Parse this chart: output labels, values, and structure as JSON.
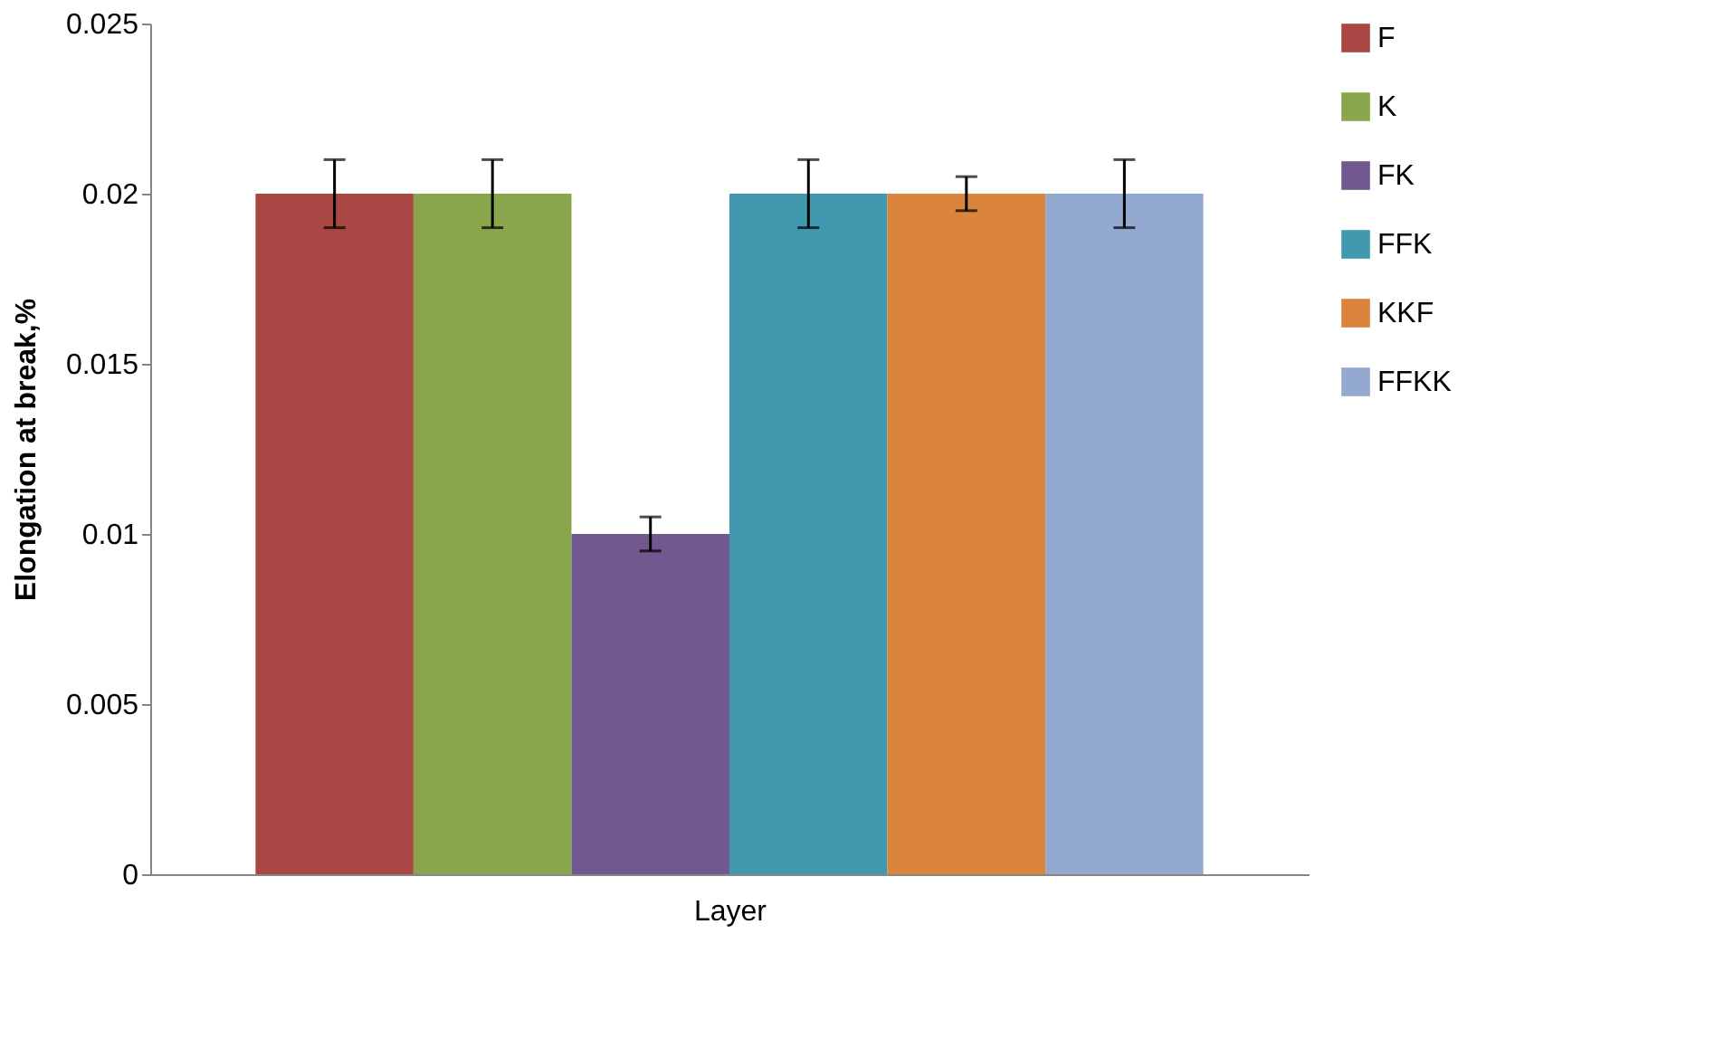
{
  "chart_data": {
    "type": "bar",
    "xlabel": "Layer",
    "ylabel": "Elongation at break,%",
    "categories": [
      null
    ],
    "series": [
      {
        "name": "F",
        "color": "#a94744",
        "values": [
          0.02
        ],
        "errors": [
          0.001
        ]
      },
      {
        "name": "K",
        "color": "#8aa64c",
        "values": [
          0.02
        ],
        "errors": [
          0.001
        ]
      },
      {
        "name": "FK",
        "color": "#71588f",
        "values": [
          0.01
        ],
        "errors": [
          0.0005
        ]
      },
      {
        "name": "FFK",
        "color": "#4198af",
        "values": [
          0.02
        ],
        "errors": [
          0.001
        ]
      },
      {
        "name": "KKF",
        "color": "#db843d",
        "values": [
          0.02
        ],
        "errors": [
          0.0005
        ]
      },
      {
        "name": "FFKK",
        "color": "#93a9cf",
        "values": [
          0.02
        ],
        "errors": [
          0.001
        ]
      }
    ],
    "ylim": [
      0,
      0.025
    ],
    "yticks": [
      0,
      0.005,
      0.01,
      0.015,
      0.02,
      0.025
    ],
    "grid": false,
    "legend": "right",
    "tick_labels": "y"
  }
}
